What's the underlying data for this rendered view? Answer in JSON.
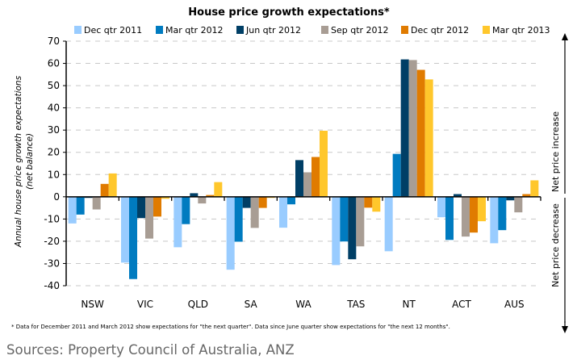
{
  "chart_data": {
    "type": "bar",
    "title": "House price growth expectations*",
    "xlabel": "",
    "ylabel": "Annual house price growth expectations",
    "ylabel_sub": "(net balance)",
    "ylim": [
      -40,
      70
    ],
    "yticks": [
      70,
      60,
      50,
      40,
      30,
      20,
      10,
      0,
      -10,
      -20,
      -30,
      -40
    ],
    "grid": true,
    "legend_position": "top",
    "categories": [
      "NSW",
      "VIC",
      "QLD",
      "SA",
      "WA",
      "TAS",
      "NT",
      "ACT",
      "AUS"
    ],
    "series": [
      {
        "name": "Dec qtr 2011",
        "color": "#99ccff",
        "values": [
          -12,
          -29.6,
          -22.7,
          -32.8,
          -13.9,
          -30.7,
          -24.5,
          -9.2,
          -20.9
        ]
      },
      {
        "name": "Mar qtr 2012",
        "color": "#007bc0",
        "values": [
          -8,
          -37,
          -12.3,
          -20.2,
          -3.4,
          -20.1,
          19.3,
          -19.4,
          -15
        ]
      },
      {
        "name": "Jun qtr 2012",
        "color": "#003f66",
        "values": [
          -0.5,
          -9.6,
          1.6,
          -5,
          16.5,
          -28.1,
          61.8,
          1.2,
          -1.6
        ]
      },
      {
        "name": "Sep qtr 2012",
        "color": "#a89d94",
        "values": [
          -5.7,
          -18.8,
          -3,
          -14,
          11,
          -22.3,
          61.5,
          -17.9,
          -7
        ]
      },
      {
        "name": "Dec qtr 2012",
        "color": "#e07b00",
        "values": [
          5.8,
          -8.9,
          0.8,
          -5,
          17.9,
          -4.9,
          57.1,
          -16.1,
          1.2
        ]
      },
      {
        "name": "Mar qtr 2013",
        "color": "#ffc72c",
        "values": [
          10.5,
          -0.9,
          6.6,
          -0.5,
          29.7,
          -6.7,
          52.8,
          -11,
          7.4
        ]
      }
    ],
    "annotations": {
      "increase": "Net price increase",
      "decrease": "Net price decrease"
    }
  },
  "footnote": "* Data for December 2011 and March 2012 show expectations for \"the next quarter\". Data since June quarter show expectations for \"the next 12 months\".",
  "sources": "Sources: Property Council of Australia, ANZ"
}
